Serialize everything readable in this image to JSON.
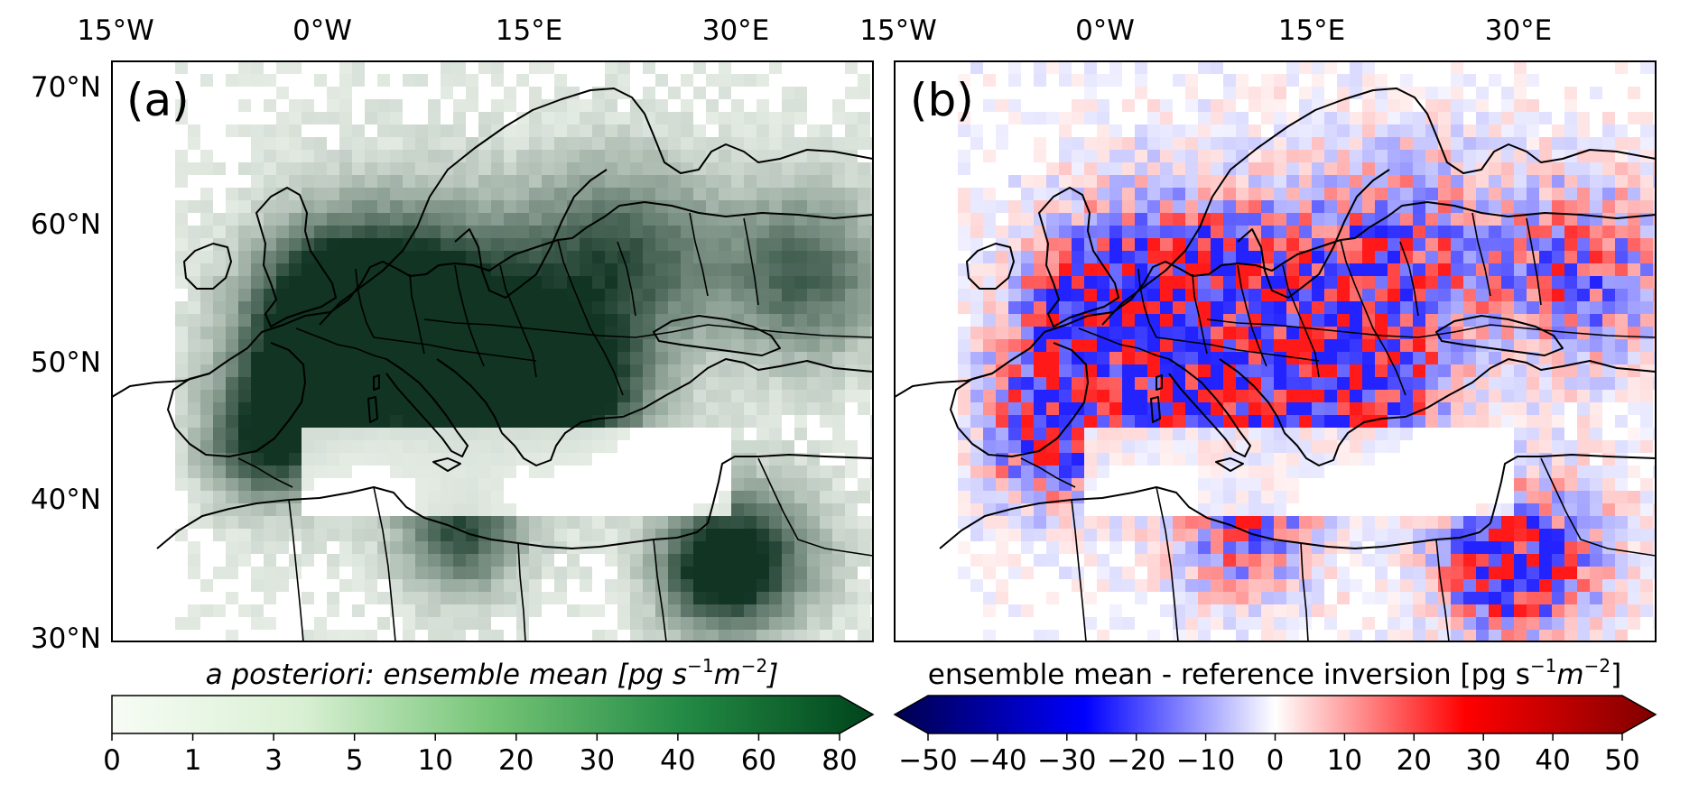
{
  "panels": [
    {
      "label": "(a)",
      "colormap": "Greens",
      "lon_ticks": [
        "15°W",
        "0°W",
        "15°E",
        "30°E"
      ],
      "lat_ticks": [
        "70°N",
        "60°N",
        "50°N",
        "40°N",
        "30°N"
      ],
      "colorbar": {
        "label_parts": [
          "a posteriori: ensemble mean [pg s",
          "−1",
          "m",
          "−2",
          "]"
        ],
        "ticks": [
          "0",
          "1",
          "3",
          "5",
          "10",
          "20",
          "30",
          "40",
          "60",
          "80"
        ],
        "extend": "max"
      }
    },
    {
      "label": "(b)",
      "colormap": "seismic",
      "lon_ticks": [
        "15°W",
        "0°W",
        "15°E",
        "30°E"
      ],
      "colorbar": {
        "label_parts": [
          "ensemble mean - reference inversion [pg s",
          "−1",
          "m",
          "−2",
          "]"
        ],
        "ticks": [
          "−50",
          "−40",
          "−30",
          "−20",
          "−10",
          "0",
          "10",
          "20",
          "30",
          "40",
          "50"
        ],
        "extend": "both"
      }
    }
  ],
  "colors": {
    "greens_low": "#f7fcf5",
    "greens_high": "#00441b",
    "seismic_low": "#00004c",
    "seismic_mid": "#ffffff",
    "seismic_high": "#7f0000"
  }
}
